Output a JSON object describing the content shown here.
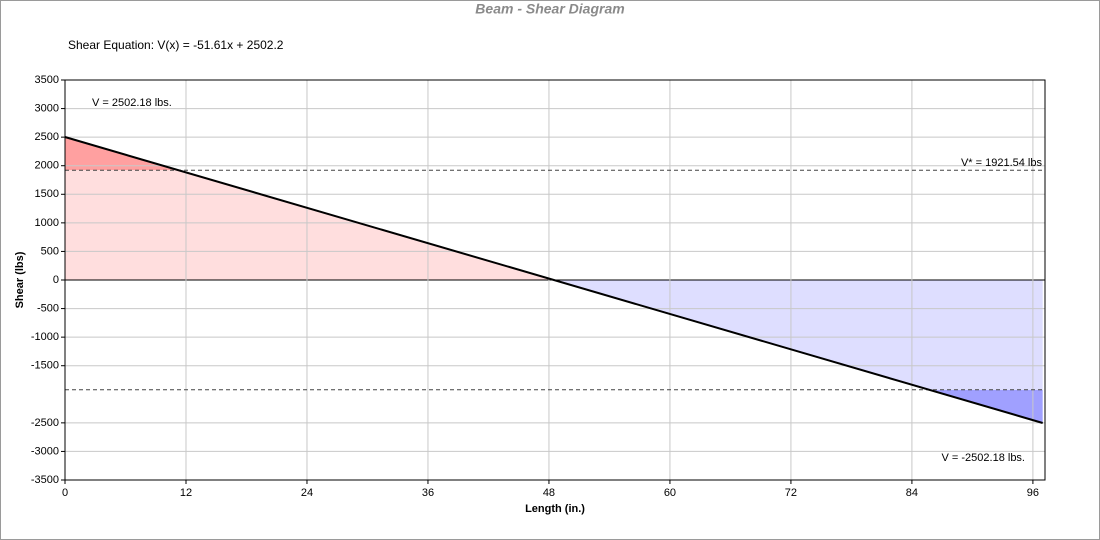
{
  "chart_data": {
    "type": "line",
    "title": "Beam - Shear Diagram",
    "equation": "Shear Equation:  V(x) = -51.61x + 2502.2",
    "x_label": "Length (in.)",
    "y_label": "Shear (lbs)",
    "x": [
      0,
      96.97
    ],
    "series": [
      {
        "color": "#000000",
        "values": [
          2502.18,
          -2502.18
        ]
      }
    ],
    "thresholds": [
      1921.54,
      -1921.54
    ],
    "annotations": [
      "V = 2502.18 lbs.",
      "V* = 1921.54 lbs",
      "V = -2502.18 lbs."
    ],
    "fill_colors": {
      "positive": "#ffdede",
      "positive_over": "#ffa0a0",
      "negative": "#dedeff",
      "negative_over": "#a0a0ff"
    },
    "xlim": [
      0,
      97.2
    ],
    "xticks": [
      0,
      12,
      24,
      36,
      48,
      60,
      72,
      84,
      96
    ],
    "ylim": [
      -3500,
      3500
    ],
    "yticks": [
      3500,
      3000,
      2500,
      2000,
      1500,
      1000,
      500,
      0,
      -500,
      -1000,
      -1500,
      -2500,
      -3000,
      -3500
    ],
    "grid": true
  }
}
